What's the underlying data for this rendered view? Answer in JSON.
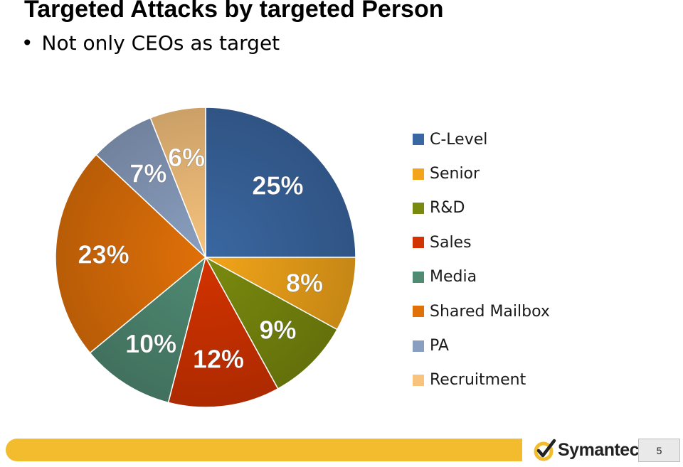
{
  "title": "Targeted Attacks by targeted Person",
  "bullet": "Not only CEOs as target",
  "footer": {
    "brand": "Symantec.",
    "page_number": "5"
  },
  "chart_data": {
    "type": "pie",
    "categories": [
      "C-Level",
      "Senior",
      "R&D",
      "Sales",
      "Media",
      "Shared Mailbox",
      "PA",
      "Recruitment"
    ],
    "values": [
      25,
      8,
      9,
      12,
      10,
      23,
      7,
      6
    ],
    "labels": [
      "25%",
      "8%",
      "9%",
      "12%",
      "10%",
      "23%",
      "7%",
      "6%"
    ],
    "colors": [
      "#3a67a1",
      "#f2a51a",
      "#7a8a0e",
      "#d33300",
      "#4f8a73",
      "#e07008",
      "#8a9fc0",
      "#f7c37d"
    ],
    "legend_position": "right",
    "start_angle": "top, clockwise"
  }
}
